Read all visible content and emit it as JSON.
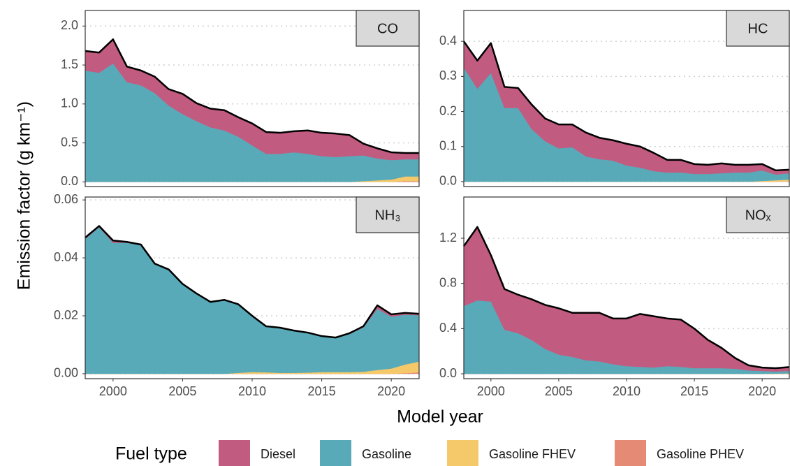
{
  "figure": {
    "x_label": "Model year",
    "y_label": "Emission factor (g km⁻¹)",
    "legend_title": "Fuel type"
  },
  "chart_data": [
    {
      "type": "area",
      "title": "CO",
      "x": [
        1998,
        1999,
        2000,
        2001,
        2002,
        2003,
        2004,
        2005,
        2006,
        2007,
        2008,
        2009,
        2010,
        2011,
        2012,
        2013,
        2014,
        2015,
        2016,
        2017,
        2018,
        2019,
        2020,
        2021,
        2022
      ],
      "xlim": [
        1998,
        2022
      ],
      "ylim": [
        -0.06,
        2.2
      ],
      "yticks": [
        {
          "value": 0,
          "label": "0.0"
        },
        0.5,
        {
          "value": 1,
          "label": "1.0"
        },
        1.5,
        {
          "value": 2,
          "label": "2.0"
        }
      ],
      "grid": true,
      "series": [
        {
          "name": "Diesel",
          "color": "#c25b80",
          "values": [
            0.25,
            0.26,
            0.31,
            0.2,
            0.19,
            0.21,
            0.21,
            0.26,
            0.23,
            0.24,
            0.26,
            0.25,
            0.28,
            0.28,
            0.27,
            0.27,
            0.3,
            0.3,
            0.3,
            0.27,
            0.15,
            0.13,
            0.1,
            0.08,
            0.08
          ]
        },
        {
          "name": "Gasoline",
          "color": "#58aab9",
          "values": [
            1.43,
            1.4,
            1.52,
            1.28,
            1.24,
            1.14,
            0.98,
            0.87,
            0.78,
            0.7,
            0.66,
            0.58,
            0.47,
            0.36,
            0.36,
            0.38,
            0.36,
            0.33,
            0.32,
            0.33,
            0.33,
            0.28,
            0.25,
            0.22,
            0.22
          ]
        },
        {
          "name": "Gasoline FHEV",
          "color": "#f5c96a",
          "values": [
            0,
            0,
            0,
            0,
            0,
            0,
            0,
            0,
            0,
            0,
            0,
            0,
            0,
            0,
            0,
            0,
            0,
            0,
            0,
            0,
            0.01,
            0.02,
            0.03,
            0.06,
            0.06
          ]
        },
        {
          "name": "Gasoline PHEV",
          "color": "#e58a74",
          "values": [
            0,
            0,
            0,
            0,
            0,
            0,
            0,
            0,
            0,
            0,
            0,
            0,
            0,
            0,
            0,
            0,
            0,
            0,
            0,
            0,
            0,
            0,
            0,
            0.01,
            0.01
          ]
        }
      ]
    },
    {
      "type": "area",
      "title": "HC",
      "x": [
        1998,
        1999,
        2000,
        2001,
        2002,
        2003,
        2004,
        2005,
        2006,
        2007,
        2008,
        2009,
        2010,
        2011,
        2012,
        2013,
        2014,
        2015,
        2016,
        2017,
        2018,
        2019,
        2020,
        2021,
        2022
      ],
      "xlim": [
        1998,
        2022
      ],
      "ylim": [
        -0.014,
        0.488
      ],
      "yticks": [
        {
          "value": 0,
          "label": "0.0"
        },
        0.1,
        0.2,
        0.3,
        0.4
      ],
      "grid": true,
      "series": [
        {
          "name": "Diesel",
          "color": "#c25b80",
          "values": [
            0.075,
            0.08,
            0.085,
            0.06,
            0.057,
            0.07,
            0.065,
            0.068,
            0.065,
            0.068,
            0.061,
            0.058,
            0.062,
            0.06,
            0.052,
            0.036,
            0.036,
            0.028,
            0.026,
            0.028,
            0.022,
            0.022,
            0.018,
            0.012,
            0.01
          ]
        },
        {
          "name": "Gasoline",
          "color": "#58aab9",
          "values": [
            0.325,
            0.265,
            0.31,
            0.21,
            0.21,
            0.15,
            0.115,
            0.095,
            0.098,
            0.072,
            0.064,
            0.06,
            0.046,
            0.04,
            0.03,
            0.026,
            0.026,
            0.022,
            0.022,
            0.024,
            0.026,
            0.026,
            0.03,
            0.016,
            0.018
          ]
        },
        {
          "name": "Gasoline FHEV",
          "color": "#f5c96a",
          "values": [
            0,
            0,
            0,
            0,
            0,
            0,
            0,
            0,
            0,
            0,
            0,
            0,
            0,
            0,
            0,
            0,
            0,
            0,
            0,
            0,
            0,
            0,
            0.002,
            0.004,
            0.005
          ]
        },
        {
          "name": "Gasoline PHEV",
          "color": "#e58a74",
          "values": [
            0,
            0,
            0,
            0,
            0,
            0,
            0,
            0,
            0,
            0,
            0,
            0,
            0,
            0,
            0,
            0,
            0,
            0,
            0,
            0,
            0,
            0,
            0,
            0,
            0.001
          ]
        }
      ]
    },
    {
      "type": "area",
      "title": "NH₃",
      "x": [
        1998,
        1999,
        2000,
        2001,
        2002,
        2003,
        2004,
        2005,
        2006,
        2007,
        2008,
        2009,
        2010,
        2011,
        2012,
        2013,
        2014,
        2015,
        2016,
        2017,
        2018,
        2019,
        2020,
        2021,
        2022
      ],
      "xlim": [
        1998,
        2022
      ],
      "ylim": [
        -0.0017,
        0.061
      ],
      "xticks": [
        2000,
        2005,
        2010,
        2015,
        2020
      ],
      "yticks": [
        {
          "value": 0,
          "label": "0.00"
        },
        0.02,
        0.04,
        0.06
      ],
      "grid": true,
      "series": [
        {
          "name": "Diesel",
          "color": "#c25b80",
          "values": [
            0.0005,
            0.0004,
            0.0008,
            0.0003,
            0.0002,
            0.0002,
            0.0002,
            0.0002,
            0.0002,
            0.0002,
            0.0002,
            0.0002,
            0.0002,
            0.0002,
            0.0002,
            0.0002,
            0.0002,
            0.0002,
            0.0002,
            0.0003,
            0.0004,
            0.0012,
            0.0008,
            0.0006,
            0.0005
          ]
        },
        {
          "name": "Gasoline",
          "color": "#58aab9",
          "values": [
            0.0465,
            0.0506,
            0.0452,
            0.0452,
            0.0444,
            0.0378,
            0.0358,
            0.0308,
            0.0275,
            0.0246,
            0.0253,
            0.0235,
            0.0192,
            0.0157,
            0.0154,
            0.0144,
            0.0136,
            0.0122,
            0.0117,
            0.0131,
            0.0153,
            0.0211,
            0.0179,
            0.0172,
            0.016
          ]
        },
        {
          "name": "Gasoline FHEV",
          "color": "#f5c96a",
          "values": [
            0,
            0,
            0,
            0,
            0,
            0,
            0,
            0,
            0,
            0,
            0,
            0.0003,
            0.0006,
            0.0005,
            0.0003,
            0.0003,
            0.0004,
            0.0006,
            0.0006,
            0.0006,
            0.0007,
            0.0013,
            0.0018,
            0.003,
            0.0037
          ]
        },
        {
          "name": "Gasoline PHEV",
          "color": "#e58a74",
          "values": [
            0,
            0,
            0,
            0,
            0,
            0,
            0,
            0,
            0,
            0,
            0,
            0,
            0,
            0,
            0,
            0,
            0,
            0,
            0,
            0,
            0,
            0,
            0,
            0.0002,
            0.0005
          ]
        }
      ]
    },
    {
      "type": "area",
      "title": "NOₓ",
      "x": [
        1998,
        1999,
        2000,
        2001,
        2002,
        2003,
        2004,
        2005,
        2006,
        2007,
        2008,
        2009,
        2010,
        2011,
        2012,
        2013,
        2014,
        2015,
        2016,
        2017,
        2018,
        2019,
        2020,
        2021,
        2022
      ],
      "xlim": [
        1998,
        2022
      ],
      "ylim": [
        -0.043,
        1.565
      ],
      "xticks": [
        2000,
        2005,
        2010,
        2015,
        2020
      ],
      "yticks": [
        {
          "value": 0,
          "label": "0.0"
        },
        0.4,
        0.8,
        1.2
      ],
      "grid": true,
      "series": [
        {
          "name": "Diesel",
          "color": "#c25b80",
          "values": [
            0.53,
            0.65,
            0.41,
            0.36,
            0.34,
            0.36,
            0.39,
            0.41,
            0.39,
            0.42,
            0.43,
            0.405,
            0.422,
            0.468,
            0.454,
            0.422,
            0.418,
            0.35,
            0.25,
            0.18,
            0.095,
            0.045,
            0.03,
            0.03,
            0.035
          ]
        },
        {
          "name": "Gasoline",
          "color": "#58aab9",
          "values": [
            0.6,
            0.65,
            0.64,
            0.39,
            0.36,
            0.3,
            0.22,
            0.17,
            0.15,
            0.12,
            0.11,
            0.085,
            0.068,
            0.062,
            0.056,
            0.068,
            0.062,
            0.05,
            0.05,
            0.05,
            0.045,
            0.03,
            0.025,
            0.018,
            0.022
          ]
        },
        {
          "name": "Gasoline FHEV",
          "color": "#f5c96a",
          "values": [
            0,
            0,
            0,
            0,
            0,
            0,
            0,
            0,
            0,
            0,
            0,
            0,
            0,
            0,
            0,
            0,
            0,
            0,
            0,
            0,
            0,
            0,
            0,
            0.002,
            0.003
          ]
        },
        {
          "name": "Gasoline PHEV",
          "color": "#e58a74",
          "values": [
            0,
            0,
            0,
            0,
            0,
            0,
            0,
            0,
            0,
            0,
            0,
            0,
            0,
            0,
            0,
            0,
            0,
            0,
            0,
            0,
            0,
            0,
            0,
            0,
            0
          ]
        }
      ]
    }
  ]
}
